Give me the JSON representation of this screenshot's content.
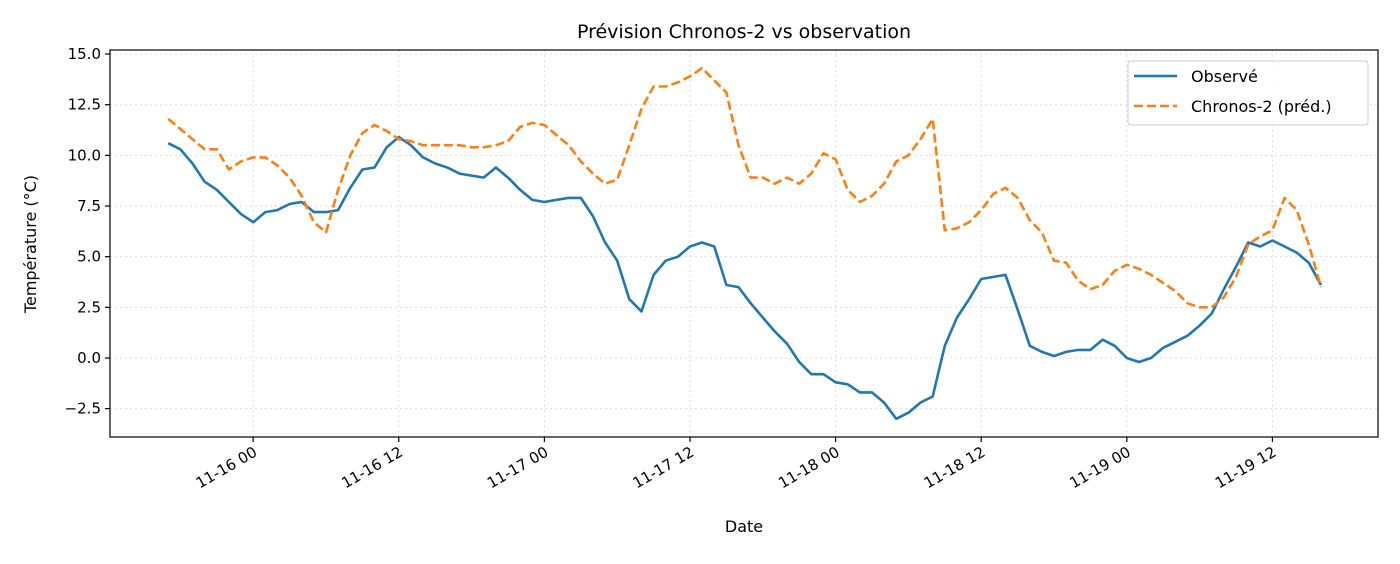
{
  "chart_data": {
    "type": "line",
    "title": "Prévision Chronos-2 vs observation",
    "xlabel": "Date",
    "ylabel": "Température (°C)",
    "ylim": [
      -3.9,
      15.2
    ],
    "xlim": [
      "11-15 12:12",
      "11-19 20:42"
    ],
    "yticks": [
      -2.5,
      0.0,
      2.5,
      5.0,
      7.5,
      10.0,
      12.5,
      15.0
    ],
    "ytick_labels": [
      "−2.5",
      "0.0",
      "2.5",
      "5.0",
      "7.5",
      "10.0",
      "12.5",
      "15.0"
    ],
    "xticks": [
      "11-16 00:00",
      "11-16 12:00",
      "11-17 00:00",
      "11-17 12:00",
      "11-18 00:00",
      "11-18 12:00",
      "11-19 00:00",
      "11-19 12:00"
    ],
    "xtick_labels": [
      "11-16 00",
      "11-16 12",
      "11-17 00",
      "11-17 12",
      "11-18 00",
      "11-18 12",
      "11-19 00",
      "11-19 12"
    ],
    "grid": true,
    "legend_placement": "top-right",
    "x": [
      "11-15 17:00",
      "11-15 18:00",
      "11-15 19:00",
      "11-15 20:00",
      "11-15 21:00",
      "11-15 22:00",
      "11-15 23:00",
      "11-16 00:00",
      "11-16 01:00",
      "11-16 02:00",
      "11-16 03:00",
      "11-16 04:00",
      "11-16 05:00",
      "11-16 06:00",
      "11-16 07:00",
      "11-16 08:00",
      "11-16 09:00",
      "11-16 10:00",
      "11-16 11:00",
      "11-16 12:00",
      "11-16 13:00",
      "11-16 14:00",
      "11-16 15:00",
      "11-16 16:00",
      "11-16 17:00",
      "11-16 18:00",
      "11-16 19:00",
      "11-16 20:00",
      "11-16 21:00",
      "11-16 22:00",
      "11-16 23:00",
      "11-17 00:00",
      "11-17 01:00",
      "11-17 02:00",
      "11-17 03:00",
      "11-17 04:00",
      "11-17 05:00",
      "11-17 06:00",
      "11-17 07:00",
      "11-17 08:00",
      "11-17 09:00",
      "11-17 10:00",
      "11-17 11:00",
      "11-17 12:00",
      "11-17 13:00",
      "11-17 14:00",
      "11-17 15:00",
      "11-17 16:00",
      "11-17 17:00",
      "11-17 18:00",
      "11-17 19:00",
      "11-17 20:00",
      "11-17 21:00",
      "11-17 22:00",
      "11-17 23:00",
      "11-18 00:00",
      "11-18 01:00",
      "11-18 02:00",
      "11-18 03:00",
      "11-18 04:00",
      "11-18 05:00",
      "11-18 06:00",
      "11-18 07:00",
      "11-18 08:00",
      "11-18 09:00",
      "11-18 10:00",
      "11-18 11:00",
      "11-18 12:00",
      "11-18 13:00",
      "11-18 14:00",
      "11-18 15:00",
      "11-18 16:00",
      "11-18 17:00",
      "11-18 18:00",
      "11-18 19:00",
      "11-18 20:00",
      "11-18 21:00",
      "11-18 22:00",
      "11-18 23:00",
      "11-19 00:00",
      "11-19 01:00",
      "11-19 02:00",
      "11-19 03:00",
      "11-19 04:00",
      "11-19 05:00",
      "11-19 06:00",
      "11-19 07:00",
      "11-19 08:00",
      "11-19 09:00",
      "11-19 10:00",
      "11-19 11:00",
      "11-19 12:00",
      "11-19 13:00",
      "11-19 14:00",
      "11-19 15:00",
      "11-19 16:00"
    ],
    "series": [
      {
        "name": "Observé",
        "color": "#1f77b4",
        "style": "solid",
        "values": [
          10.6,
          10.3,
          9.6,
          8.7,
          8.3,
          7.7,
          7.1,
          6.7,
          7.2,
          7.3,
          7.6,
          7.7,
          7.2,
          7.2,
          7.3,
          8.4,
          9.3,
          9.4,
          10.4,
          10.9,
          10.5,
          9.9,
          9.6,
          9.4,
          9.1,
          9.0,
          8.9,
          9.4,
          8.9,
          8.3,
          7.8,
          7.7,
          7.8,
          7.9,
          7.9,
          7.0,
          5.7,
          4.8,
          2.9,
          2.3,
          4.1,
          4.8,
          5.0,
          5.5,
          5.7,
          5.5,
          3.6,
          3.5,
          2.7,
          2.0,
          1.3,
          0.7,
          -0.2,
          -0.8,
          -0.8,
          -1.2,
          -1.3,
          -1.7,
          -1.7,
          -2.2,
          -3.0,
          -2.7,
          -2.2,
          -1.9,
          0.6,
          2.0,
          2.9,
          3.9,
          4.0,
          4.1,
          2.4,
          0.6,
          0.3,
          0.1,
          0.3,
          0.4,
          0.4,
          0.9,
          0.6,
          0.0,
          -0.2,
          0.0,
          0.5,
          0.8,
          1.1,
          1.6,
          2.2,
          3.4,
          4.5,
          5.7,
          5.5,
          5.8,
          5.5,
          5.2,
          4.7,
          3.6
        ]
      },
      {
        "name": "Chronos-2 (préd.)",
        "color": "#ff7f0e",
        "style": "dashed",
        "values": [
          11.8,
          11.3,
          10.8,
          10.3,
          10.3,
          9.3,
          9.7,
          9.9,
          9.9,
          9.5,
          8.9,
          8.0,
          6.7,
          6.2,
          8.3,
          10.0,
          11.1,
          11.5,
          11.2,
          10.8,
          10.7,
          10.5,
          10.5,
          10.5,
          10.5,
          10.4,
          10.4,
          10.5,
          10.7,
          11.4,
          11.6,
          11.5,
          11.0,
          10.5,
          9.7,
          9.1,
          8.6,
          8.8,
          10.5,
          12.3,
          13.4,
          13.4,
          13.6,
          13.9,
          14.3,
          13.7,
          13.1,
          10.5,
          8.9,
          8.9,
          8.6,
          8.9,
          8.6,
          9.1,
          10.1,
          9.8,
          8.3,
          7.7,
          8.0,
          8.6,
          9.7,
          10.0,
          10.8,
          11.8,
          6.3,
          6.4,
          6.7,
          7.3,
          8.1,
          8.4,
          7.9,
          6.8,
          6.2,
          4.8,
          4.7,
          3.8,
          3.4,
          3.6,
          4.3,
          4.6,
          4.4,
          4.1,
          3.7,
          3.3,
          2.7,
          2.5,
          2.5,
          3.0,
          4.0,
          5.6,
          6.0,
          6.3,
          7.9,
          7.3,
          5.6,
          3.5
        ]
      }
    ]
  }
}
